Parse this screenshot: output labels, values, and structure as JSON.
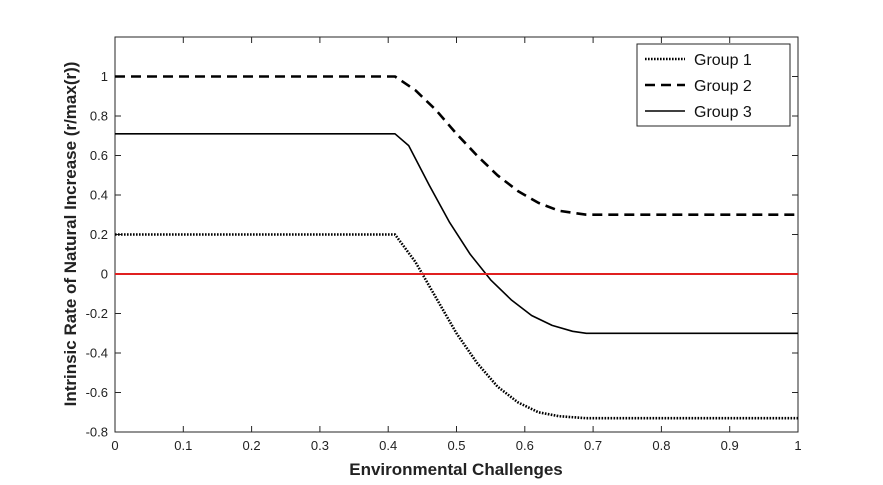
{
  "chart_data": {
    "type": "line",
    "xlabel": "Environmental Challenges",
    "ylabel": "Intrinsic Rate of Natural Increase (r/max(r))",
    "xlim": [
      0,
      1
    ],
    "ylim": [
      -0.8,
      1.2
    ],
    "x_ticks": [
      "0",
      "0.1",
      "0.2",
      "0.3",
      "0.4",
      "0.5",
      "0.6",
      "0.7",
      "0.8",
      "0.9",
      "1"
    ],
    "y_ticks": [
      "-0.8",
      "-0.6",
      "-0.4",
      "-0.2",
      "0",
      "0.2",
      "0.4",
      "0.6",
      "0.8",
      "1"
    ],
    "legend_position": "top-right",
    "grid": false,
    "box": true,
    "series": [
      {
        "name": "Group 1",
        "style": "dotted",
        "color": "#000000",
        "x": [
          0,
          0.41,
          0.44,
          0.47,
          0.5,
          0.53,
          0.56,
          0.59,
          0.62,
          0.65,
          0.69,
          0.7,
          0.8,
          0.9,
          1
        ],
        "y": [
          0.2,
          0.2,
          0.06,
          -0.12,
          -0.3,
          -0.45,
          -0.57,
          -0.65,
          -0.7,
          -0.72,
          -0.73,
          -0.73,
          -0.73,
          -0.73,
          -0.73
        ]
      },
      {
        "name": "Group 2",
        "style": "dashed",
        "color": "#000000",
        "x": [
          0,
          0.41,
          0.44,
          0.47,
          0.5,
          0.53,
          0.56,
          0.59,
          0.62,
          0.65,
          0.69,
          0.7,
          0.8,
          0.9,
          1
        ],
        "y": [
          1.0,
          1.0,
          0.93,
          0.83,
          0.71,
          0.6,
          0.5,
          0.42,
          0.36,
          0.32,
          0.3,
          0.3,
          0.3,
          0.3,
          0.3
        ]
      },
      {
        "name": "Group 3",
        "style": "solid",
        "color": "#000000",
        "x": [
          0,
          0.41,
          0.43,
          0.46,
          0.49,
          0.52,
          0.55,
          0.58,
          0.61,
          0.64,
          0.67,
          0.69,
          0.7,
          0.8,
          0.9,
          1
        ],
        "y": [
          0.71,
          0.71,
          0.65,
          0.45,
          0.26,
          0.1,
          -0.03,
          -0.13,
          -0.21,
          -0.26,
          -0.29,
          -0.3,
          -0.3,
          -0.3,
          -0.3,
          -0.3
        ]
      }
    ],
    "reference_line": {
      "y": 0,
      "color": "#e02020"
    }
  }
}
